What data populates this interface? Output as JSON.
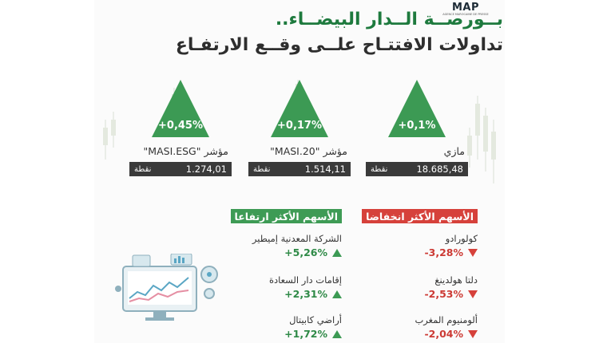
{
  "colors": {
    "up": "#3c9a54",
    "down": "#d6413b",
    "title_green": "#1e7a3e",
    "bar_dark": "#3a3a3a"
  },
  "logo": {
    "mark": "MAP",
    "sub": "AGENCE MAROCAINE DE PRESSE"
  },
  "title": {
    "line1": "بــورصــة الــدار البيضــاء..",
    "line2": "تداولات الافتتـاح علــى وقــع الارتفـاع"
  },
  "indices": [
    {
      "change": "+0,1%",
      "name": "مازي",
      "value": "18.685,48",
      "unit": "نقطة"
    },
    {
      "change": "+0,17%",
      "name": "مؤشر \"MASI.20\"",
      "value": "1.514,11",
      "unit": "نقطة"
    },
    {
      "change": "+0,45%",
      "name": "مؤشر \"MASI.ESG\"",
      "value": "1.274,01",
      "unit": "نقطة"
    }
  ],
  "decliners": {
    "heading": "الأسهم الأكثر انخفاضا",
    "items": [
      {
        "name": "كولورادو",
        "change": "-3,28%"
      },
      {
        "name": "دلتا هولدينغ",
        "change": "-2,53%"
      },
      {
        "name": "ألومنيوم المغرب",
        "change": "-2,04%"
      }
    ]
  },
  "gainers": {
    "heading": "الأسهم الأكثر ارتفاعا",
    "items": [
      {
        "name": "الشركة المعدنية إميطير",
        "change": "+5,26%"
      },
      {
        "name": "إقامات دار السعادة",
        "change": "+2,31%"
      },
      {
        "name": "أراضي كابيتال",
        "change": "+1,72%"
      }
    ]
  }
}
